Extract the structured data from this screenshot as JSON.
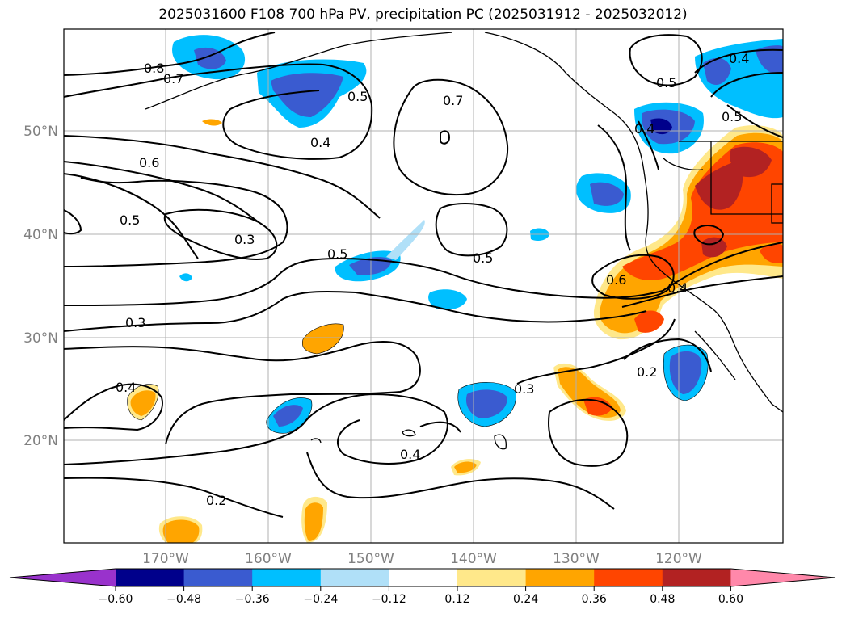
{
  "title": "2025031600 F108 700 hPa PV, precipitation PC (2025031912 - 2025032012)",
  "lat_labels": [
    "50°N",
    "40°N",
    "30°N",
    "20°N"
  ],
  "lon_labels": [
    "170°W",
    "160°W",
    "150°W",
    "140°W",
    "130°W",
    "120°W"
  ],
  "contour_labels": [
    "0.8",
    "0.7",
    "0.5",
    "0.4",
    "0.7",
    "0.6",
    "0.5",
    "0.3",
    "0.5",
    "0.5",
    "0.3",
    "0.4",
    "0.4",
    "0.2",
    "0.3",
    "0.2",
    "0.6",
    "0.4",
    "0.5",
    "0.4",
    "0.5",
    "0.4"
  ],
  "colorbar": {
    "ticks": [
      "−0.60",
      "−0.48",
      "−0.36",
      "−0.24",
      "−0.12",
      "0.12",
      "0.24",
      "0.36",
      "0.48",
      "0.60"
    ],
    "colors": [
      "#9932cc",
      "#00008b",
      "#3a5bd0",
      "#00bfff",
      "#b0e0f8",
      "#ffffff",
      "#ffe88a",
      "#ffa500",
      "#ff4500",
      "#b22222",
      "#ff88aa"
    ]
  }
}
